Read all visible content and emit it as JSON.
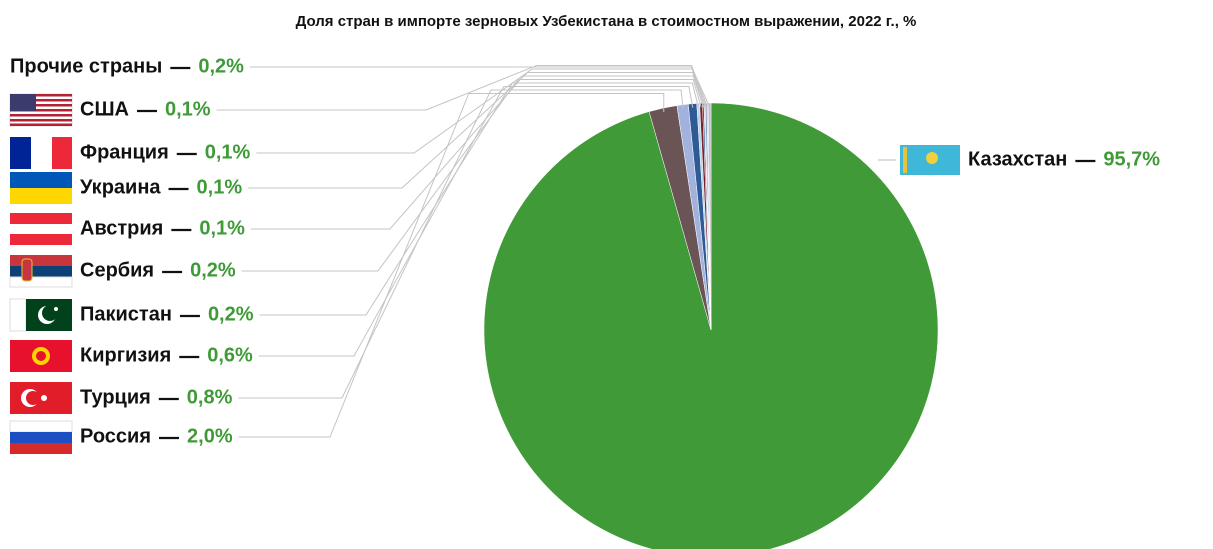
{
  "chart_data": {
    "type": "pie",
    "title": "Доля стран в импорте зерновых Узбекистана в стоимостном выражении, 2022 г., %",
    "categories": [
      "Казахстан",
      "Россия",
      "Турция",
      "Киргизия",
      "Пакистан",
      "Сербия",
      "Австрия",
      "Украина",
      "Франция",
      "США",
      "Прочие страны"
    ],
    "values": [
      95.7,
      2.0,
      0.8,
      0.6,
      0.2,
      0.2,
      0.1,
      0.1,
      0.1,
      0.1,
      0.2
    ],
    "value_labels": [
      "95,7%",
      "2,0%",
      "0,8%",
      "0,6%",
      "0,2%",
      "0,2%",
      "0,1%",
      "0,1%",
      "0,1%",
      "0,1%",
      "0,2%"
    ],
    "colors": [
      "#3f9a37",
      "#6b5456",
      "#a3b2dc",
      "#2e5b95",
      "#b6d6e8",
      "#7a1f2b",
      "#1b3d6e",
      "#e4c6d6",
      "#5d7fb0",
      "#c8d7ea",
      "#c0c0c0"
    ]
  }
}
